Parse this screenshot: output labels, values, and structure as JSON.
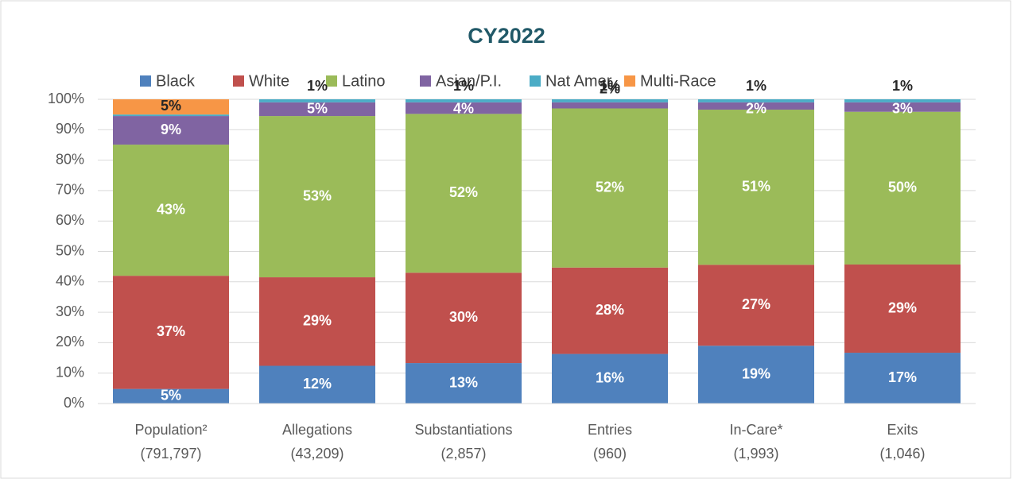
{
  "chart_data": {
    "type": "stacked_bar",
    "title": "CY2022",
    "categories": [
      [
        "Population²",
        "(791,797)"
      ],
      [
        "Allegations",
        "(43,209)"
      ],
      [
        "Substantiations",
        "(2,857)"
      ],
      [
        "Entries",
        "(960)"
      ],
      [
        "In-Care*",
        "(1,993)"
      ],
      [
        "Exits",
        "(1,046)"
      ]
    ],
    "series": [
      {
        "name": "Black",
        "color": "#4f81bd",
        "values": [
          4.8,
          12.4,
          13.3,
          16.3,
          19,
          16.7
        ],
        "value_labels": [
          "5%",
          "12%",
          "13%",
          "16%",
          "19%",
          "17%"
        ]
      },
      {
        "name": "White",
        "color": "#c0504d",
        "values": [
          37.2,
          29.1,
          29.7,
          28.4,
          26.6,
          29
        ],
        "value_labels": [
          "37%",
          "29%",
          "30%",
          "28%",
          "27%",
          "29%"
        ]
      },
      {
        "name": "Latino",
        "color": "#9bbb59",
        "values": [
          43.1,
          53,
          52.2,
          52.3,
          51,
          50.2
        ],
        "value_labels": [
          "43%",
          "53%",
          "52%",
          "52%",
          "51%",
          "50%"
        ]
      },
      {
        "name": "Asian/P.I.",
        "color": "#8064a2",
        "values": [
          9.4,
          4.5,
          3.8,
          2,
          2.4,
          3.1
        ],
        "value_labels": [
          "9%",
          "5%",
          "4%",
          "2%",
          "2%",
          "3%"
        ]
      },
      {
        "name": "Nat Amer",
        "color": "#4bacc6",
        "values": [
          0.5,
          1,
          1,
          1,
          1,
          1
        ],
        "value_labels": [
          null,
          "1%",
          "1%",
          "1%",
          "1%",
          "1%"
        ]
      },
      {
        "name": "Multi-Race",
        "color": "#f79646",
        "values": [
          5,
          null,
          null,
          null,
          null,
          null
        ],
        "value_labels": [
          "5%",
          null,
          null,
          null,
          null,
          null
        ]
      }
    ],
    "ylim": [
      0,
      100
    ],
    "yticks": [
      {
        "value": 0,
        "label": "0%"
      },
      {
        "value": 10,
        "label": "10%"
      },
      {
        "value": 20,
        "label": "20%"
      },
      {
        "value": 30,
        "label": "30%"
      },
      {
        "value": 40,
        "label": "40%"
      },
      {
        "value": 50,
        "label": "50%"
      },
      {
        "value": 60,
        "label": "60%"
      },
      {
        "value": 70,
        "label": "70%"
      },
      {
        "value": 80,
        "label": "80%"
      },
      {
        "value": 90,
        "label": "90%"
      },
      {
        "value": 100,
        "label": "100%"
      }
    ],
    "grid": true,
    "legend": "top"
  }
}
